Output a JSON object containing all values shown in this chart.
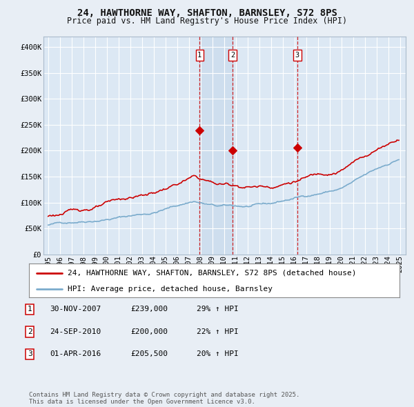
{
  "title": "24, HAWTHORNE WAY, SHAFTON, BARNSLEY, S72 8PS",
  "subtitle": "Price paid vs. HM Land Registry's House Price Index (HPI)",
  "ylim": [
    0,
    420000
  ],
  "yticks": [
    0,
    50000,
    100000,
    150000,
    200000,
    250000,
    300000,
    350000,
    400000
  ],
  "ytick_labels": [
    "£0",
    "£50K",
    "£100K",
    "£150K",
    "£200K",
    "£250K",
    "£300K",
    "£350K",
    "£400K"
  ],
  "background_color": "#e8eef5",
  "plot_bg_color": "#dce8f4",
  "grid_color": "#ffffff",
  "red_line_color": "#cc0000",
  "blue_line_color": "#7aabcc",
  "vline_color": "#cc0000",
  "transactions": [
    {
      "date": 2007.92,
      "price": 239000,
      "label": "1"
    },
    {
      "date": 2010.73,
      "price": 200000,
      "label": "2"
    },
    {
      "date": 2016.25,
      "price": 205500,
      "label": "3"
    }
  ],
  "legend_entries": [
    "24, HAWTHORNE WAY, SHAFTON, BARNSLEY, S72 8PS (detached house)",
    "HPI: Average price, detached house, Barnsley"
  ],
  "table_rows": [
    [
      "1",
      "30-NOV-2007",
      "£239,000",
      "29% ↑ HPI"
    ],
    [
      "2",
      "24-SEP-2010",
      "£200,000",
      "22% ↑ HPI"
    ],
    [
      "3",
      "01-APR-2016",
      "£205,500",
      "20% ↑ HPI"
    ]
  ],
  "footer": "Contains HM Land Registry data © Crown copyright and database right 2025.\nThis data is licensed under the Open Government Licence v3.0.",
  "title_fontsize": 10,
  "subtitle_fontsize": 8.5,
  "tick_fontsize": 7.5,
  "legend_fontsize": 8,
  "table_fontsize": 8,
  "footer_fontsize": 6.5
}
